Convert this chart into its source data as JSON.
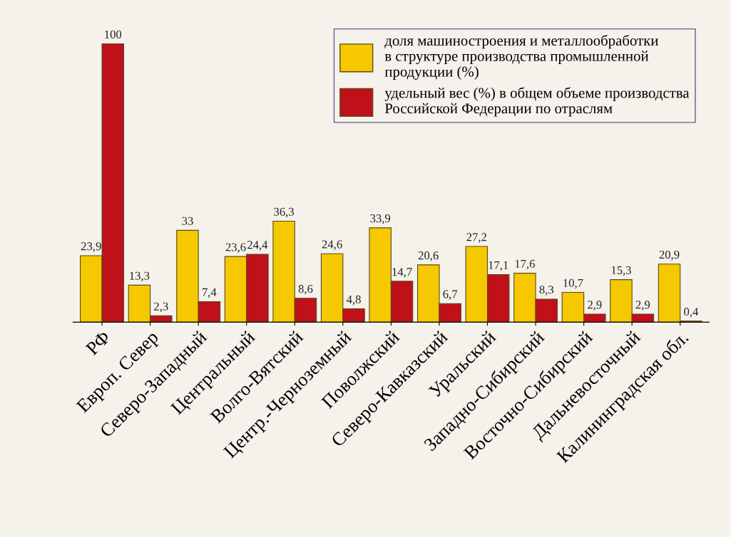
{
  "chart_data": {
    "type": "bar",
    "categories": [
      "РФ",
      "Европ. Север",
      "Северо-Западный",
      "Центральный",
      "Волго-Вятский",
      "Центр.-Черноземный",
      "Поволжский",
      "Северо-Кавказский",
      "Уральский",
      "Западно-Сибирский",
      "Восточно-Сибирский",
      "Дальневосточный",
      "Калининградская обл."
    ],
    "series": [
      {
        "name": "доля машиностроения и металлообработки\nв структуре производства промышленной\nпродукции (%)",
        "color": "#f5c800",
        "values": [
          23.9,
          13.3,
          33,
          23.6,
          36.3,
          24.6,
          33.9,
          20.6,
          27.2,
          17.6,
          10.7,
          15.3,
          20.9
        ],
        "value_labels": [
          "23,9",
          "13,3",
          "33",
          "23,6",
          "36,3",
          "24,6",
          "33,9",
          "20,6",
          "27,2",
          "17,6",
          "10,7",
          "15,3",
          "20,9"
        ]
      },
      {
        "name": "удельный вес (%) в общем объеме производства\nРоссийской Федерации по отраслям",
        "color": "#c0101a",
        "values": [
          100,
          2.3,
          7.4,
          24.4,
          8.6,
          4.8,
          14.7,
          6.7,
          17.1,
          8.3,
          2.9,
          2.9,
          0.4
        ],
        "value_labels": [
          "100",
          "2,3",
          "7,4",
          "24,4",
          "8,6",
          "4,8",
          "14,7",
          "6,7",
          "17,1",
          "8,3",
          "2,9",
          "2,9",
          "0,4"
        ]
      }
    ],
    "legend": "top right",
    "grid": false
  }
}
